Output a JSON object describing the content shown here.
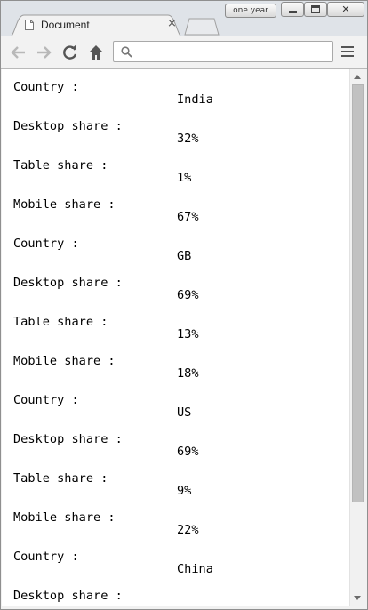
{
  "window": {
    "user_badge": "one year",
    "tab_title": "Document",
    "tab_close": "×"
  },
  "toolbar": {
    "address_value": "",
    "icons": [
      "back-arrow-icon",
      "forward-arrow-icon",
      "reload-icon",
      "home-icon",
      "search-icon",
      "menu-icon"
    ]
  },
  "page": {
    "records": [
      {
        "label": "Country :",
        "value": "India"
      },
      {
        "label": "Desktop share :",
        "value": "32%"
      },
      {
        "label": "Table share :",
        "value": "1%"
      },
      {
        "label": "Mobile share :",
        "value": "67%"
      },
      {
        "label": "Country :",
        "value": "GB"
      },
      {
        "label": "Desktop share :",
        "value": "69%"
      },
      {
        "label": "Table share :",
        "value": "13%"
      },
      {
        "label": "Mobile share :",
        "value": "18%"
      },
      {
        "label": "Country :",
        "value": "US"
      },
      {
        "label": "Desktop share :",
        "value": "69%"
      },
      {
        "label": "Table share :",
        "value": "9%"
      },
      {
        "label": "Mobile share :",
        "value": "22%"
      },
      {
        "label": "Country :",
        "value": "China"
      },
      {
        "label": "Desktop share :",
        "value": ""
      }
    ]
  },
  "scroll": {
    "position": 0
  }
}
